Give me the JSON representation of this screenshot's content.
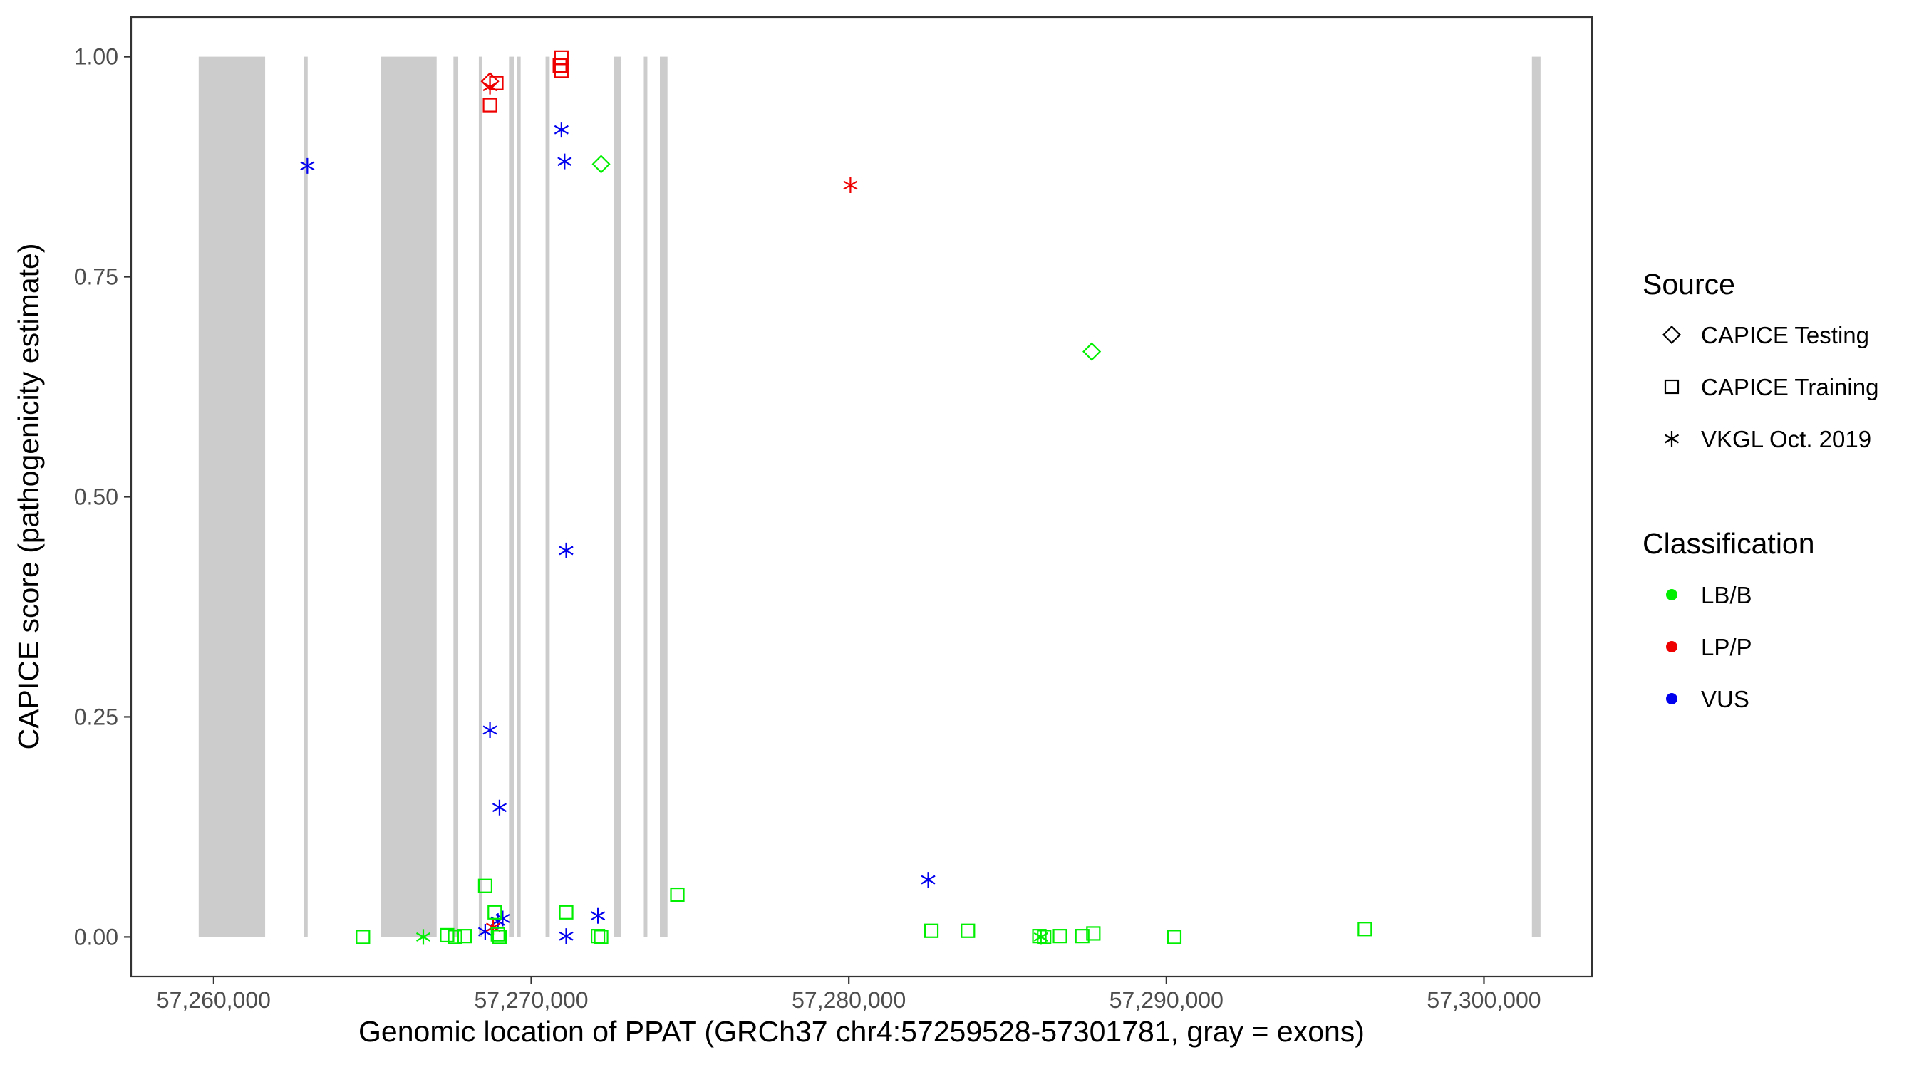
{
  "chart_data": {
    "type": "scatter",
    "xlabel": "Genomic location of PPAT (GRCh37 chr4:57259528-57301781, gray = exons)",
    "ylabel": "CAPICE score (pathogenicity estimate)",
    "xlim": [
      57257400,
      57303400
    ],
    "ylim": [
      -0.045,
      1.045
    ],
    "x_ticks": [
      57260000,
      57270000,
      57280000,
      57290000,
      57300000
    ],
    "x_tick_labels": [
      "57,260,000",
      "57,270,000",
      "57,280,000",
      "57,290,000",
      "57,300,000"
    ],
    "y_ticks": [
      0,
      0.25,
      0.5,
      0.75,
      1.0
    ],
    "y_tick_labels": [
      "0.00",
      "0.25",
      "0.50",
      "0.75",
      "1.00"
    ],
    "grid": false,
    "legend_placement": "right",
    "exons": [
      [
        57259528,
        57261620
      ],
      [
        57262840,
        57262960
      ],
      [
        57265270,
        57267020
      ],
      [
        57267550,
        57267700
      ],
      [
        57268350,
        57268460
      ],
      [
        57269300,
        57269470
      ],
      [
        57269560,
        57269660
      ],
      [
        57270450,
        57270580
      ],
      [
        57272600,
        57272830
      ],
      [
        57273560,
        57273640
      ],
      [
        57274050,
        57274290
      ],
      [
        57301510,
        57301781
      ]
    ],
    "legend": {
      "source_title": "Source",
      "source_items": [
        {
          "label": "CAPICE Testing",
          "shape": "diamond"
        },
        {
          "label": "CAPICE Training",
          "shape": "square"
        },
        {
          "label": "VKGL Oct. 2019",
          "shape": "asterisk"
        }
      ],
      "class_title": "Classification",
      "class_items": [
        {
          "label": "LB/B",
          "color": "#00ee00"
        },
        {
          "label": "LP/P",
          "color": "#ee0000"
        },
        {
          "label": "VUS",
          "color": "#0000ee"
        }
      ]
    },
    "colors": {
      "LB/B": "#00ee00",
      "LP/P": "#ee0000",
      "VUS": "#0000ee",
      "exon": "#cccccc"
    },
    "points": [
      {
        "x": 57262950,
        "y": 0.876,
        "source": "VKGL Oct. 2019",
        "class": "VUS"
      },
      {
        "x": 57268700,
        "y": 0.235,
        "source": "VKGL Oct. 2019",
        "class": "VUS"
      },
      {
        "x": 57269000,
        "y": 0.147,
        "source": "VKGL Oct. 2019",
        "class": "VUS"
      },
      {
        "x": 57268550,
        "y": 0.006,
        "source": "VKGL Oct. 2019",
        "class": "VUS"
      },
      {
        "x": 57268950,
        "y": 0.018,
        "source": "VKGL Oct. 2019",
        "class": "VUS"
      },
      {
        "x": 57269100,
        "y": 0.021,
        "source": "VKGL Oct. 2019",
        "class": "VUS"
      },
      {
        "x": 57270950,
        "y": 0.917,
        "source": "VKGL Oct. 2019",
        "class": "VUS"
      },
      {
        "x": 57271050,
        "y": 0.881,
        "source": "VKGL Oct. 2019",
        "class": "VUS"
      },
      {
        "x": 57271100,
        "y": 0.439,
        "source": "VKGL Oct. 2019",
        "class": "VUS"
      },
      {
        "x": 57271100,
        "y": 0.001,
        "source": "VKGL Oct. 2019",
        "class": "VUS"
      },
      {
        "x": 57272100,
        "y": 0.024,
        "source": "VKGL Oct. 2019",
        "class": "VUS"
      },
      {
        "x": 57282500,
        "y": 0.065,
        "source": "VKGL Oct. 2019",
        "class": "VUS"
      },
      {
        "x": 57268700,
        "y": 0.972,
        "source": "CAPICE Testing",
        "class": "LP/P"
      },
      {
        "x": 57268900,
        "y": 0.97,
        "source": "CAPICE Training",
        "class": "LP/P"
      },
      {
        "x": 57268700,
        "y": 0.966,
        "source": "VKGL Oct. 2019",
        "class": "LP/P"
      },
      {
        "x": 57268700,
        "y": 0.945,
        "source": "CAPICE Training",
        "class": "LP/P"
      },
      {
        "x": 57270950,
        "y": 0.999,
        "source": "CAPICE Training",
        "class": "LP/P"
      },
      {
        "x": 57270900,
        "y": 0.99,
        "source": "CAPICE Training",
        "class": "LP/P"
      },
      {
        "x": 57270950,
        "y": 0.984,
        "source": "CAPICE Training",
        "class": "LP/P"
      },
      {
        "x": 57280050,
        "y": 0.854,
        "source": "VKGL Oct. 2019",
        "class": "LP/P"
      },
      {
        "x": 57268800,
        "y": 0.011,
        "source": "VKGL Oct. 2019",
        "class": "LP/P"
      },
      {
        "x": 57272200,
        "y": 0.878,
        "source": "CAPICE Testing",
        "class": "LB/B"
      },
      {
        "x": 57287650,
        "y": 0.665,
        "source": "CAPICE Testing",
        "class": "LB/B"
      },
      {
        "x": 57264700,
        "y": 0.0,
        "source": "CAPICE Training",
        "class": "LB/B"
      },
      {
        "x": 57266600,
        "y": 0.0,
        "source": "VKGL Oct. 2019",
        "class": "LB/B"
      },
      {
        "x": 57267350,
        "y": 0.002,
        "source": "CAPICE Training",
        "class": "LB/B"
      },
      {
        "x": 57267600,
        "y": 0.0,
        "source": "CAPICE Training",
        "class": "LB/B"
      },
      {
        "x": 57267900,
        "y": 0.001,
        "source": "CAPICE Training",
        "class": "LB/B"
      },
      {
        "x": 57268550,
        "y": 0.058,
        "source": "CAPICE Training",
        "class": "LB/B"
      },
      {
        "x": 57268850,
        "y": 0.028,
        "source": "CAPICE Training",
        "class": "LB/B"
      },
      {
        "x": 57268950,
        "y": 0.003,
        "source": "CAPICE Training",
        "class": "LB/B"
      },
      {
        "x": 57269000,
        "y": 0.0,
        "source": "CAPICE Training",
        "class": "LB/B"
      },
      {
        "x": 57271100,
        "y": 0.028,
        "source": "CAPICE Training",
        "class": "LB/B"
      },
      {
        "x": 57272100,
        "y": 0.001,
        "source": "CAPICE Training",
        "class": "LB/B"
      },
      {
        "x": 57272200,
        "y": 0.0,
        "source": "CAPICE Training",
        "class": "LB/B"
      },
      {
        "x": 57274600,
        "y": 0.048,
        "source": "CAPICE Training",
        "class": "LB/B"
      },
      {
        "x": 57282600,
        "y": 0.007,
        "source": "CAPICE Training",
        "class": "LB/B"
      },
      {
        "x": 57283750,
        "y": 0.007,
        "source": "CAPICE Training",
        "class": "LB/B"
      },
      {
        "x": 57286000,
        "y": 0.001,
        "source": "CAPICE Training",
        "class": "LB/B"
      },
      {
        "x": 57286050,
        "y": 0.0,
        "source": "VKGL Oct. 2019",
        "class": "LB/B"
      },
      {
        "x": 57286150,
        "y": 0.0,
        "source": "CAPICE Training",
        "class": "LB/B"
      },
      {
        "x": 57286650,
        "y": 0.001,
        "source": "CAPICE Training",
        "class": "LB/B"
      },
      {
        "x": 57287350,
        "y": 0.001,
        "source": "CAPICE Training",
        "class": "LB/B"
      },
      {
        "x": 57287700,
        "y": 0.004,
        "source": "CAPICE Training",
        "class": "LB/B"
      },
      {
        "x": 57290250,
        "y": 0.0,
        "source": "CAPICE Training",
        "class": "LB/B"
      },
      {
        "x": 57296250,
        "y": 0.009,
        "source": "CAPICE Training",
        "class": "LB/B"
      }
    ]
  }
}
